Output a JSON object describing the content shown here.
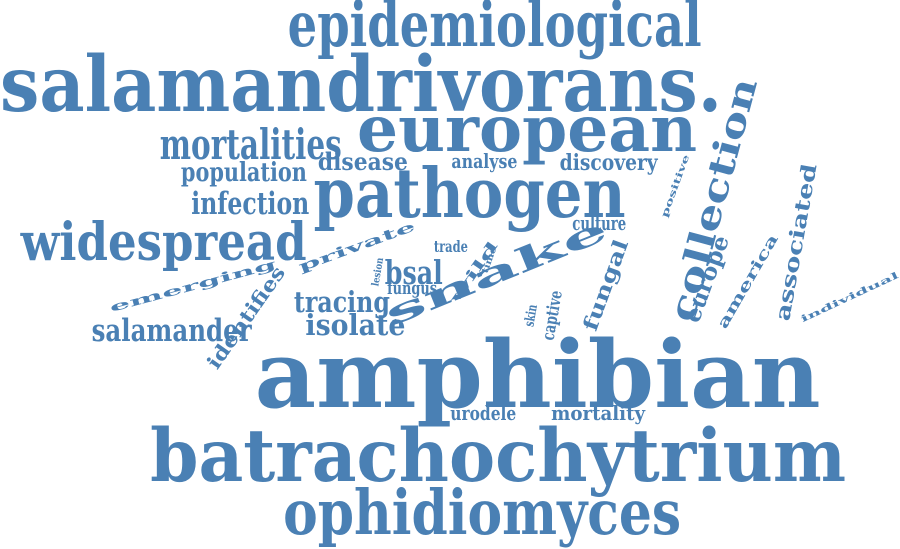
{
  "color": "#4a80b4",
  "words": [
    {
      "text": "epidemiological",
      "name": "epidemiological"
    },
    {
      "text": "salamandrivorans.",
      "name": "salamandrivorans"
    },
    {
      "text": "european",
      "name": "european"
    },
    {
      "text": "mortalities",
      "name": "mortalities"
    },
    {
      "text": "disease",
      "name": "disease"
    },
    {
      "text": "analyse",
      "name": "analyse"
    },
    {
      "text": "discovery",
      "name": "discovery"
    },
    {
      "text": "population",
      "name": "population"
    },
    {
      "text": "pathogen",
      "name": "pathogen"
    },
    {
      "text": "infection",
      "name": "infection"
    },
    {
      "text": "collection",
      "name": "collection"
    },
    {
      "text": "positive",
      "name": "positive"
    },
    {
      "text": "associated",
      "name": "associated"
    },
    {
      "text": "widespread",
      "name": "widespread"
    },
    {
      "text": "private",
      "name": "private"
    },
    {
      "text": "culture",
      "name": "culture"
    },
    {
      "text": "trade",
      "name": "trade"
    },
    {
      "text": "time",
      "name": "time"
    },
    {
      "text": "snake",
      "name": "snake"
    },
    {
      "text": "europe",
      "name": "europe"
    },
    {
      "text": "america",
      "name": "america"
    },
    {
      "text": "individual",
      "name": "individual"
    },
    {
      "text": "emerging",
      "name": "emerging"
    },
    {
      "text": "identifies",
      "name": "identifies"
    },
    {
      "text": "bsal",
      "name": "bsal"
    },
    {
      "text": "wild",
      "name": "wild"
    },
    {
      "text": "fungal",
      "name": "fungal"
    },
    {
      "text": "lesion",
      "name": "lesion"
    },
    {
      "text": "fungus",
      "name": "fungus"
    },
    {
      "text": "tracing",
      "name": "tracing"
    },
    {
      "text": "captive",
      "name": "captive"
    },
    {
      "text": "skin",
      "name": "skin"
    },
    {
      "text": "salamander",
      "name": "salamander"
    },
    {
      "text": "isolate",
      "name": "isolate"
    },
    {
      "text": "amphibian",
      "name": "amphibian"
    },
    {
      "text": "urodele",
      "name": "urodele"
    },
    {
      "text": "mortality",
      "name": "mortality"
    },
    {
      "text": "batrachochytrium",
      "name": "batrachochytrium"
    },
    {
      "text": "ophidiomyces",
      "name": "ophidiomyces"
    }
  ]
}
